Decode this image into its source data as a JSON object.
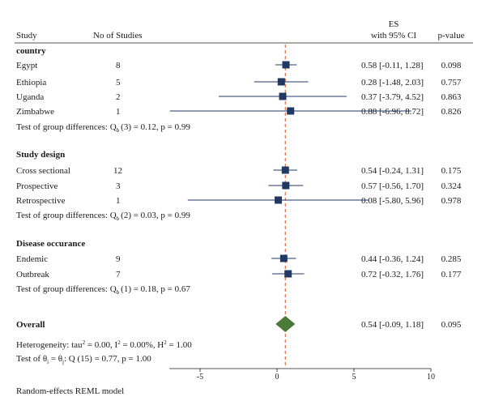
{
  "chart_data": {
    "type": "forest",
    "header": {
      "study": "Study",
      "n": "No of Studies",
      "es_line1": "ES",
      "es_line2": "with 95% CI",
      "pvalue": "p-value"
    },
    "groups": [
      {
        "name": "country",
        "rows": [
          {
            "label": "Egypt",
            "n": "8",
            "es": 0.58,
            "lo": -0.11,
            "hi": 1.28,
            "ci_text": "0.58 [-0.11, 1.28]",
            "p": "0.098"
          },
          {
            "label": "Ethiopia",
            "n": "5",
            "es": 0.28,
            "lo": -1.48,
            "hi": 2.03,
            "ci_text": "0.28 [-1.48, 2.03]",
            "p": "0.757"
          },
          {
            "label": "Uganda",
            "n": "2",
            "es": 0.37,
            "lo": -3.79,
            "hi": 4.52,
            "ci_text": "0.37 [-3.79, 4.52]",
            "p": "0.863"
          },
          {
            "label": "Zimbabwe",
            "n": "1",
            "es": 0.88,
            "lo": -6.96,
            "hi": 8.72,
            "ci_text": "0.88 [-6.96, 8.72]",
            "p": "0.826"
          }
        ],
        "test": {
          "prefix": "Test of group differences: Q",
          "sub": "b",
          "suffix": "(3) = 0.12, p = 0.99"
        }
      },
      {
        "name": "Study design",
        "rows": [
          {
            "label": "Cross sectional",
            "n": "12",
            "es": 0.54,
            "lo": -0.24,
            "hi": 1.31,
            "ci_text": "0.54 [-0.24, 1.31]",
            "p": "0.175"
          },
          {
            "label": "Prospective",
            "n": "3",
            "es": 0.57,
            "lo": -0.56,
            "hi": 1.7,
            "ci_text": "0.57 [-0.56, 1.70]",
            "p": "0.324"
          },
          {
            "label": "Retrospective",
            "n": "1",
            "es": 0.08,
            "lo": -5.8,
            "hi": 5.96,
            "ci_text": "0.08 [-5.80, 5.96]",
            "p": "0.978"
          }
        ],
        "test": {
          "prefix": "Test of group differences: Q",
          "sub": "b",
          "suffix": "(2) = 0.03, p = 0.99"
        }
      },
      {
        "name": "Disease occurance",
        "rows": [
          {
            "label": "Endemic",
            "n": "9",
            "es": 0.44,
            "lo": -0.36,
            "hi": 1.24,
            "ci_text": "0.44 [-0.36, 1.24]",
            "p": "0.285"
          },
          {
            "label": "Outbreak",
            "n": "7",
            "es": 0.72,
            "lo": -0.32,
            "hi": 1.76,
            "ci_text": "0.72 [-0.32, 1.76]",
            "p": "0.177"
          }
        ],
        "test": {
          "prefix": "Test of group differences: Q",
          "sub": "b",
          "suffix": "(1) = 0.18, p = 0.67"
        }
      }
    ],
    "overall": {
      "label": "Overall",
      "es": 0.54,
      "lo": -0.09,
      "hi": 1.18,
      "ci_text": "0.54 [-0.09, 1.18]",
      "p": "0.095"
    },
    "heterogeneity": {
      "a": "Heterogeneity: tau",
      "a_sup": "2",
      "b": " = 0.00, I",
      "b_sup": "2",
      "c": " = 0.00%, H",
      "c_sup": "2",
      "d": " = 1.00"
    },
    "homogeneity": {
      "a": "Test of θ",
      "a_sub": "i",
      "b": " = θ",
      "b_sub": "j",
      "c": ": Q (15) = 0.77, p = 1.00"
    },
    "xaxis": {
      "ticks": [
        -5,
        0,
        5,
        10
      ],
      "tick_labels": [
        "-5",
        "0",
        "5",
        "10"
      ],
      "range": [
        -7,
        10
      ]
    },
    "ref_line": 0.54,
    "footnote": "Random-effects REML model",
    "colors": {
      "marker": "#1f3864",
      "diamond": "#4a7a35",
      "ref_line": "#d9622b",
      "text": "#1a1a1a"
    }
  }
}
